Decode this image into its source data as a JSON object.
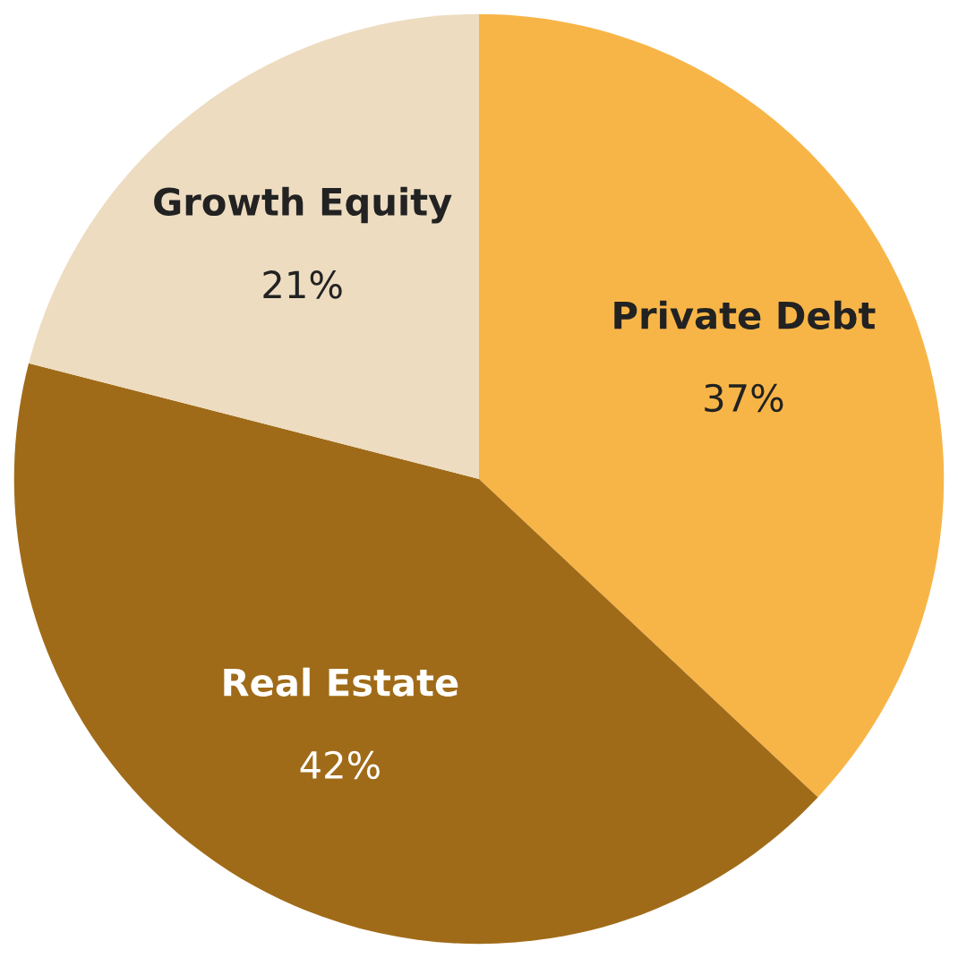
{
  "chart_data": {
    "type": "pie",
    "categories": [
      "Private Debt",
      "Real Estate",
      "Growth Equity"
    ],
    "values": [
      37,
      42,
      21
    ],
    "value_labels": [
      "37%",
      "42%",
      "21%"
    ],
    "colors": [
      "#f8b547",
      "#a06b18",
      "#eddcc0"
    ]
  }
}
